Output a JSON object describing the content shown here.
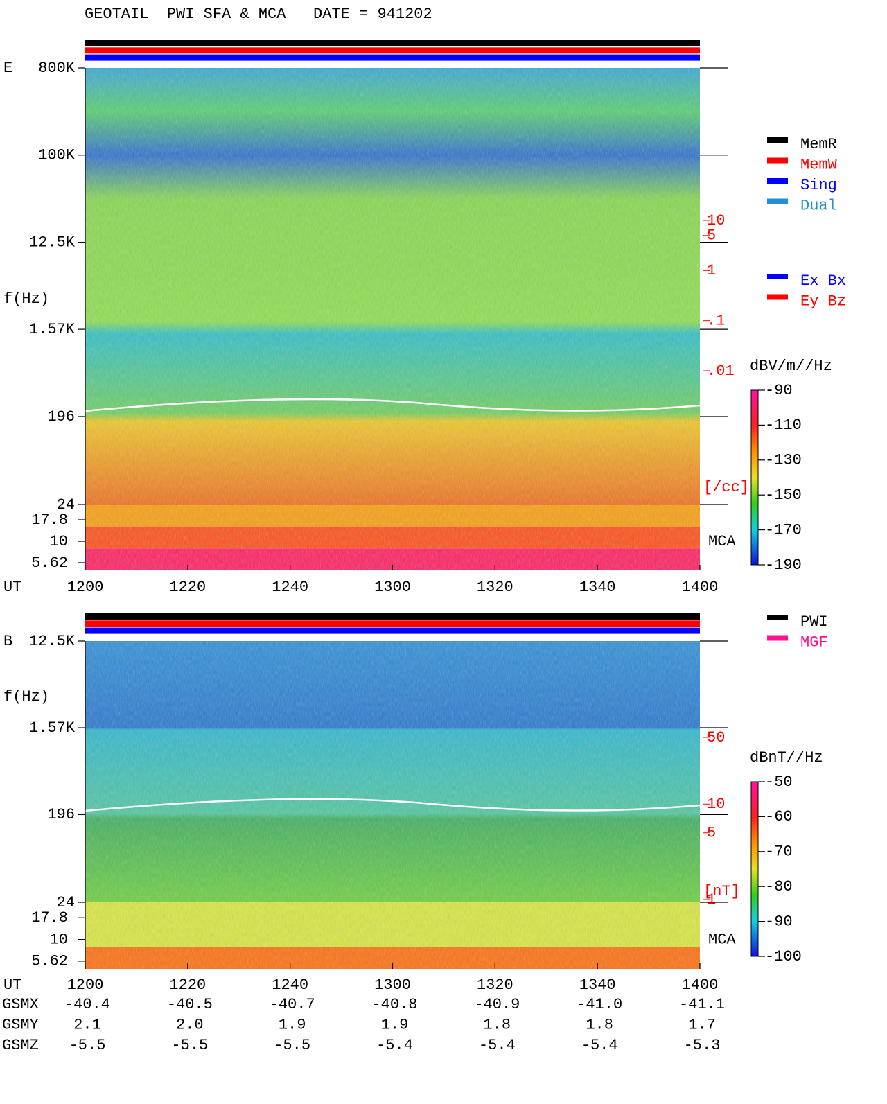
{
  "title": "GEOTAIL  PWI SFA & MCA   DATE = 941202",
  "chart_data": [
    {
      "type": "spectrogram",
      "panel": "E",
      "ylabel": "f(Hz)",
      "xlabel": "UT",
      "xlim": [
        0,
        120
      ],
      "xticks": [
        {
          "value": 0,
          "label": "1200"
        },
        {
          "value": 20,
          "label": "1220"
        },
        {
          "value": 40,
          "label": "1240"
        },
        {
          "value": 60,
          "label": "1300"
        },
        {
          "value": 80,
          "label": "1320"
        },
        {
          "value": 100,
          "label": "1340"
        },
        {
          "value": 120,
          "label": "1400"
        }
      ],
      "log_y": true,
      "ylim": [
        24,
        800000
      ],
      "yticks": [
        {
          "value": 800000,
          "label": "800K"
        },
        {
          "value": 100000,
          "label": "100K"
        },
        {
          "value": 12500,
          "label": "12.5K"
        },
        {
          "value": 1570,
          "label": "1.57K"
        },
        196,
        24
      ],
      "mca_label": "MCA",
      "mca_ylim": [
        4.58,
        26.8
      ],
      "mca_yticks": [
        17.8,
        10,
        5.62
      ],
      "y2label": "[/cc]",
      "y2lim": [
        0.01,
        10
      ],
      "y2ticks": [
        10,
        5,
        1,
        {
          "value": 0.1,
          "label": ".1"
        },
        {
          "value": 0.01,
          "label": ".01"
        }
      ],
      "colorbar": {
        "label": "dBV/m//Hz",
        "lim": [
          -190,
          -90
        ],
        "ticks": [
          -90,
          -110,
          -130,
          -150,
          -170,
          -190
        ]
      },
      "legends": [
        [
          {
            "name": "MemR",
            "color": "#000000"
          },
          {
            "name": "MemW",
            "color": "#ff0000"
          },
          {
            "name": "Sing",
            "color": "#0000ff"
          },
          {
            "name": "Dual",
            "color": "#2090d0"
          }
        ],
        [
          {
            "name": "Ex Bx",
            "color": "#0000ff"
          },
          {
            "name": "Ey Bz",
            "color": "#ff0000"
          }
        ]
      ]
    },
    {
      "type": "spectrogram",
      "panel": "B",
      "ylabel": "f(Hz)",
      "xlabel": "UT",
      "xlim": [
        0,
        120
      ],
      "xticks": [
        {
          "value": 0,
          "label": "1200"
        },
        {
          "value": 20,
          "label": "1220"
        },
        {
          "value": 40,
          "label": "1240"
        },
        {
          "value": 60,
          "label": "1300"
        },
        {
          "value": 80,
          "label": "1320"
        },
        {
          "value": 100,
          "label": "1340"
        },
        {
          "value": 120,
          "label": "1400"
        }
      ],
      "log_y": true,
      "ylim": [
        24,
        12500
      ],
      "yticks": [
        {
          "value": 12500,
          "label": "12.5K"
        },
        {
          "value": 1570,
          "label": "1.57K"
        },
        196,
        24
      ],
      "mca_label": "MCA",
      "mca_ylim": [
        4.58,
        26.8
      ],
      "mca_yticks": [
        17.8,
        10,
        5.62
      ],
      "y2label": "[nT]",
      "y2lim": [
        1,
        50
      ],
      "y2ticks": [
        50,
        10,
        5,
        1
      ],
      "colorbar": {
        "label": "dBnT//Hz",
        "lim": [
          -100,
          -50
        ],
        "ticks": [
          -50,
          -60,
          -70,
          -80,
          -90,
          -100
        ]
      },
      "legends": [
        [
          {
            "name": "PWI",
            "color": "#000000"
          },
          {
            "name": "MGF",
            "color": "#ff1090"
          }
        ]
      ],
      "table": {
        "rows": [
          {
            "name": "GSMX",
            "values": [
              "-40.4",
              "-40.5",
              "-40.7",
              "-40.8",
              "-40.9",
              "-41.0",
              "-41.1"
            ]
          },
          {
            "name": "GSMY",
            "values": [
              "2.1",
              "2.0",
              "1.9",
              "1.9",
              "1.8",
              "1.8",
              "1.7"
            ]
          },
          {
            "name": "GSMZ",
            "values": [
              "-5.5",
              "-5.5",
              "-5.5",
              "-5.4",
              "-5.4",
              "-5.4",
              "-5.3"
            ]
          }
        ]
      }
    }
  ]
}
